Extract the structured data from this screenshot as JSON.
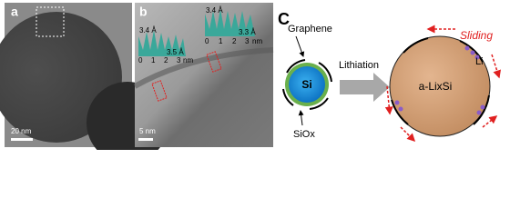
{
  "panel_a": {
    "label": "a",
    "scale_bar": "20 nm"
  },
  "panel_b": {
    "label": "b",
    "scale_bar": "5 nm",
    "inset_left": {
      "spacing_top": "3.4 Å",
      "spacing_bottom": "3.5 Å",
      "ticks": [
        "0",
        "1",
        "2",
        "3"
      ],
      "unit": "nm"
    },
    "inset_right": {
      "spacing_top": "3.4 Å",
      "spacing_bottom": "3.3 Å",
      "ticks": [
        "0",
        "1",
        "2",
        "3"
      ],
      "unit": "nm"
    }
  },
  "panel_c": {
    "label": "C",
    "graphene": "Graphene",
    "core": "Si",
    "oxide": "SiOx",
    "process": "Lithiation",
    "product": "a-LixSi",
    "ion": "Li",
    "motion": "Sliding"
  }
}
